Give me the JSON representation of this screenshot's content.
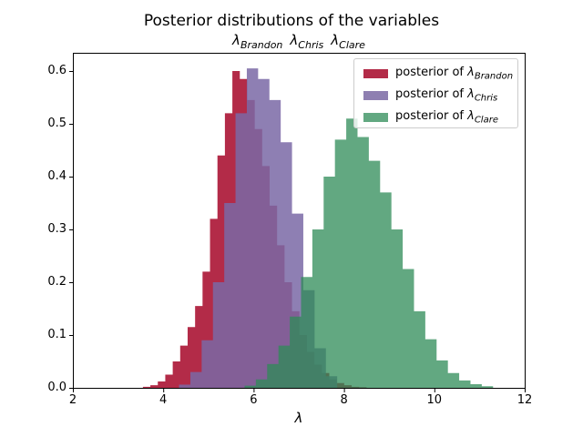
{
  "figure": {
    "title": "Posterior distributions of the variables",
    "subtitle_lambda": "λ",
    "subtitle_names": [
      "Brandon",
      "Chris",
      "Clare"
    ],
    "xlabel_symbol": "λ"
  },
  "axes": {
    "xlim": [
      2,
      12
    ],
    "ylim": [
      0,
      0.6345
    ],
    "x_ticks": [
      "2",
      "4",
      "6",
      "8",
      "10",
      "12"
    ],
    "x_tick_values": [
      2,
      4,
      6,
      8,
      10,
      12
    ],
    "y_ticks": [
      "0.0",
      "0.1",
      "0.2",
      "0.3",
      "0.4",
      "0.5",
      "0.6"
    ],
    "y_tick_values": [
      0,
      0.1,
      0.2,
      0.3,
      0.4,
      0.5,
      0.6
    ],
    "grid": "off",
    "spine_color": "#000000"
  },
  "legend": {
    "position": "upper right",
    "prefix": "posterior of ",
    "lambda": "λ",
    "items": [
      {
        "subscript": "Brandon",
        "swatch_color": "#b32b48"
      },
      {
        "subscript": "Chris",
        "swatch_color": "#8e7fb1"
      },
      {
        "subscript": "Clare",
        "swatch_color": "#62a881"
      }
    ]
  },
  "chart_data": {
    "type": "bar",
    "subtype": "overlaid-histograms",
    "title": "Posterior distributions of the variables",
    "subtitle": "λ_Brandon λ_Chris λ_Clare",
    "xlabel": "λ",
    "ylabel": "",
    "xlim": [
      2,
      12
    ],
    "ylim": [
      0,
      0.6345
    ],
    "legend_position": "upper right",
    "series": [
      {
        "id": "brandon",
        "name": "posterior of λ_Brandon",
        "color": "#A60628",
        "fill_opacity": 0.85,
        "bin_start": 3.55,
        "bin_width": 0.165,
        "heights": [
          0.002,
          0.005,
          0.012,
          0.025,
          0.05,
          0.08,
          0.115,
          0.155,
          0.22,
          0.32,
          0.44,
          0.52,
          0.6,
          0.585,
          0.545,
          0.49,
          0.42,
          0.345,
          0.27,
          0.2,
          0.145,
          0.1,
          0.068,
          0.044,
          0.028,
          0.016,
          0.009,
          0.005,
          0.002,
          0.001
        ]
      },
      {
        "id": "chris",
        "name": "posterior of λ_Chris",
        "color": "#7A68A6",
        "fill_opacity": 0.85,
        "bin_start": 4.35,
        "bin_width": 0.25,
        "heights": [
          0.006,
          0.03,
          0.09,
          0.2,
          0.35,
          0.52,
          0.605,
          0.585,
          0.545,
          0.465,
          0.33,
          0.185,
          0.075,
          0.022
        ]
      },
      {
        "id": "clare",
        "name": "posterior of λ_Clare",
        "color": "#2E8B57",
        "fill_opacity": 0.75,
        "bin_start": 5.8,
        "bin_width": 0.25,
        "heights": [
          0.004,
          0.016,
          0.045,
          0.08,
          0.135,
          0.21,
          0.3,
          0.4,
          0.47,
          0.51,
          0.475,
          0.43,
          0.37,
          0.3,
          0.225,
          0.145,
          0.092,
          0.052,
          0.028,
          0.014,
          0.007,
          0.003
        ]
      }
    ]
  }
}
